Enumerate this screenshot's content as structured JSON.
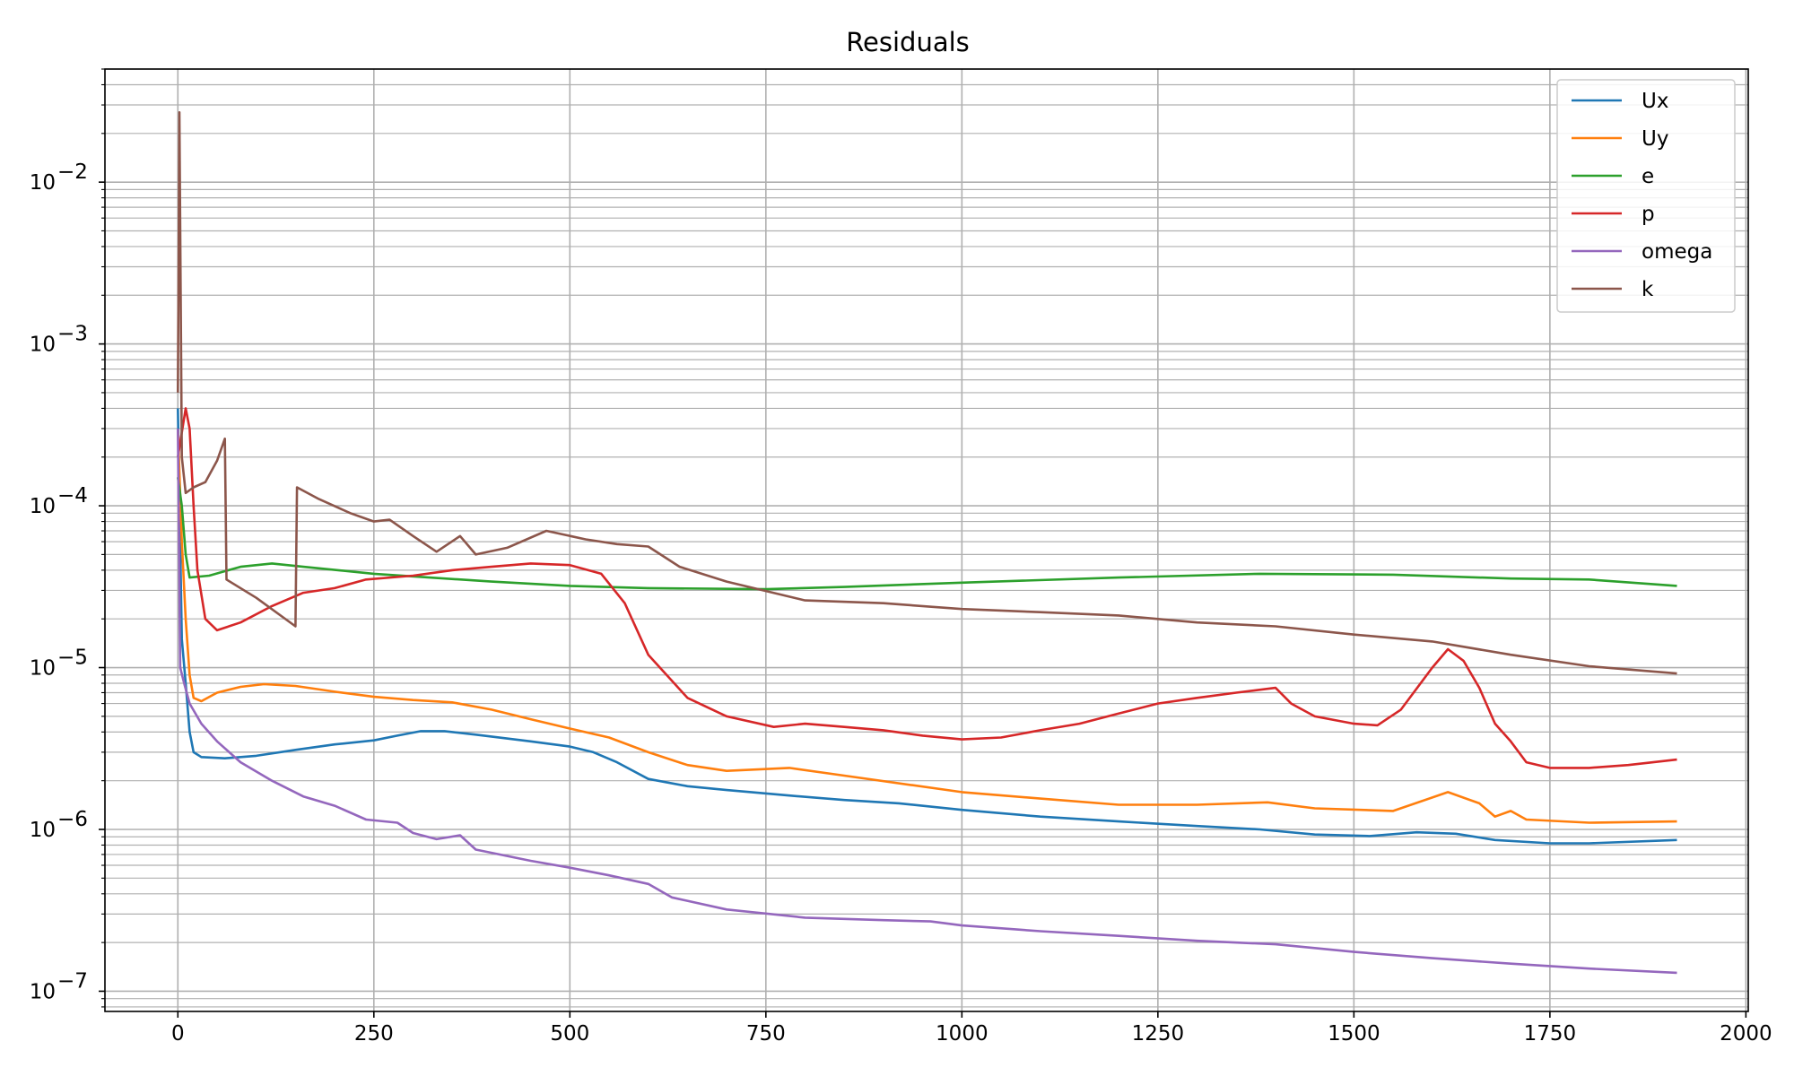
{
  "chart_data": {
    "type": "line",
    "title": "Residuals",
    "xlabel": "",
    "ylabel": "",
    "yscale": "log",
    "xlim": [
      -93,
      2003
    ],
    "ylim": [
      7.5e-08,
      0.05
    ],
    "x_ticks": [
      0,
      250,
      500,
      750,
      1000,
      1250,
      1500,
      1750,
      2000
    ],
    "y_ticks": [
      {
        "value": 1e-07,
        "base": "10",
        "exp": "−7"
      },
      {
        "value": 1e-06,
        "base": "10",
        "exp": "−6"
      },
      {
        "value": 1e-05,
        "base": "10",
        "exp": "−5"
      },
      {
        "value": 0.0001,
        "base": "10",
        "exp": "−4"
      },
      {
        "value": 0.001,
        "base": "10",
        "exp": "−3"
      },
      {
        "value": 0.01,
        "base": "10",
        "exp": "−2"
      }
    ],
    "grid": "both (major and minor on y)",
    "legend_position": "top-right",
    "series": [
      {
        "name": "Ux",
        "color": "#1f77b4",
        "points": [
          [
            0,
            0.0004
          ],
          [
            5,
            1.5e-05
          ],
          [
            10,
            8e-06
          ],
          [
            15,
            4e-06
          ],
          [
            20,
            3e-06
          ],
          [
            30,
            2.8e-06
          ],
          [
            60,
            2.75e-06
          ],
          [
            100,
            2.85e-06
          ],
          [
            150,
            3.1e-06
          ],
          [
            200,
            3.35e-06
          ],
          [
            250,
            3.55e-06
          ],
          [
            280,
            3.8e-06
          ],
          [
            310,
            4.05e-06
          ],
          [
            340,
            4.05e-06
          ],
          [
            380,
            3.85e-06
          ],
          [
            450,
            3.5e-06
          ],
          [
            500,
            3.25e-06
          ],
          [
            530,
            3e-06
          ],
          [
            560,
            2.6e-06
          ],
          [
            600,
            2.05e-06
          ],
          [
            650,
            1.85e-06
          ],
          [
            700,
            1.75e-06
          ],
          [
            780,
            1.62e-06
          ],
          [
            850,
            1.52e-06
          ],
          [
            920,
            1.45e-06
          ],
          [
            1000,
            1.32e-06
          ],
          [
            1100,
            1.2e-06
          ],
          [
            1200,
            1.12e-06
          ],
          [
            1300,
            1.05e-06
          ],
          [
            1380,
            1e-06
          ],
          [
            1450,
            9.3e-07
          ],
          [
            1520,
            9.1e-07
          ],
          [
            1580,
            9.6e-07
          ],
          [
            1630,
            9.4e-07
          ],
          [
            1680,
            8.6e-07
          ],
          [
            1750,
            8.2e-07
          ],
          [
            1800,
            8.2e-07
          ],
          [
            1912,
            8.6e-07
          ]
        ]
      },
      {
        "name": "Uy",
        "color": "#ff7f0e",
        "points": [
          [
            0,
            0.0003
          ],
          [
            5,
            6e-05
          ],
          [
            10,
            2e-05
          ],
          [
            15,
            9e-06
          ],
          [
            20,
            6.5e-06
          ],
          [
            30,
            6.2e-06
          ],
          [
            50,
            7e-06
          ],
          [
            80,
            7.6e-06
          ],
          [
            110,
            7.9e-06
          ],
          [
            150,
            7.7e-06
          ],
          [
            200,
            7.1e-06
          ],
          [
            250,
            6.6e-06
          ],
          [
            300,
            6.3e-06
          ],
          [
            350,
            6.1e-06
          ],
          [
            400,
            5.5e-06
          ],
          [
            450,
            4.8e-06
          ],
          [
            500,
            4.2e-06
          ],
          [
            550,
            3.7e-06
          ],
          [
            600,
            3e-06
          ],
          [
            650,
            2.5e-06
          ],
          [
            700,
            2.3e-06
          ],
          [
            780,
            2.4e-06
          ],
          [
            850,
            2.15e-06
          ],
          [
            1000,
            1.7e-06
          ],
          [
            1100,
            1.55e-06
          ],
          [
            1200,
            1.42e-06
          ],
          [
            1300,
            1.42e-06
          ],
          [
            1390,
            1.47e-06
          ],
          [
            1450,
            1.35e-06
          ],
          [
            1550,
            1.3e-06
          ],
          [
            1620,
            1.7e-06
          ],
          [
            1660,
            1.45e-06
          ],
          [
            1680,
            1.2e-06
          ],
          [
            1700,
            1.3e-06
          ],
          [
            1720,
            1.15e-06
          ],
          [
            1800,
            1.1e-06
          ],
          [
            1912,
            1.12e-06
          ]
        ]
      },
      {
        "name": "e",
        "color": "#2ca02c",
        "points": [
          [
            0,
            0.00015
          ],
          [
            5,
            0.0001
          ],
          [
            10,
            5e-05
          ],
          [
            15,
            3.6e-05
          ],
          [
            40,
            3.7e-05
          ],
          [
            80,
            4.2e-05
          ],
          [
            120,
            4.4e-05
          ],
          [
            160,
            4.2e-05
          ],
          [
            250,
            3.8e-05
          ],
          [
            400,
            3.4e-05
          ],
          [
            500,
            3.2e-05
          ],
          [
            600,
            3.1e-05
          ],
          [
            750,
            3.05e-05
          ],
          [
            850,
            3.15e-05
          ],
          [
            1000,
            3.35e-05
          ],
          [
            1200,
            3.6e-05
          ],
          [
            1380,
            3.8e-05
          ],
          [
            1550,
            3.75e-05
          ],
          [
            1700,
            3.55e-05
          ],
          [
            1800,
            3.5e-05
          ],
          [
            1912,
            3.2e-05
          ]
        ]
      },
      {
        "name": "p",
        "color": "#d62728",
        "points": [
          [
            0,
            0.0002
          ],
          [
            10,
            0.0004
          ],
          [
            15,
            0.0003
          ],
          [
            20,
            0.0001
          ],
          [
            25,
            4e-05
          ],
          [
            35,
            2e-05
          ],
          [
            50,
            1.7e-05
          ],
          [
            80,
            1.9e-05
          ],
          [
            120,
            2.4e-05
          ],
          [
            160,
            2.9e-05
          ],
          [
            200,
            3.1e-05
          ],
          [
            240,
            3.5e-05
          ],
          [
            300,
            3.7e-05
          ],
          [
            350,
            4e-05
          ],
          [
            400,
            4.2e-05
          ],
          [
            450,
            4.4e-05
          ],
          [
            500,
            4.3e-05
          ],
          [
            540,
            3.8e-05
          ],
          [
            570,
            2.5e-05
          ],
          [
            600,
            1.2e-05
          ],
          [
            650,
            6.5e-06
          ],
          [
            700,
            5e-06
          ],
          [
            760,
            4.3e-06
          ],
          [
            800,
            4.5e-06
          ],
          [
            850,
            4.3e-06
          ],
          [
            900,
            4.1e-06
          ],
          [
            950,
            3.8e-06
          ],
          [
            1000,
            3.6e-06
          ],
          [
            1050,
            3.7e-06
          ],
          [
            1100,
            4.1e-06
          ],
          [
            1150,
            4.5e-06
          ],
          [
            1200,
            5.2e-06
          ],
          [
            1250,
            6e-06
          ],
          [
            1300,
            6.5e-06
          ],
          [
            1350,
            7e-06
          ],
          [
            1400,
            7.5e-06
          ],
          [
            1420,
            6e-06
          ],
          [
            1450,
            5e-06
          ],
          [
            1500,
            4.5e-06
          ],
          [
            1530,
            4.4e-06
          ],
          [
            1560,
            5.5e-06
          ],
          [
            1600,
            1e-05
          ],
          [
            1620,
            1.3e-05
          ],
          [
            1640,
            1.1e-05
          ],
          [
            1660,
            7.5e-06
          ],
          [
            1680,
            4.5e-06
          ],
          [
            1700,
            3.5e-06
          ],
          [
            1720,
            2.6e-06
          ],
          [
            1750,
            2.4e-06
          ],
          [
            1800,
            2.4e-06
          ],
          [
            1850,
            2.5e-06
          ],
          [
            1912,
            2.7e-06
          ]
        ]
      },
      {
        "name": "omega",
        "color": "#9467bd",
        "points": [
          [
            0,
            0.0003
          ],
          [
            3,
            1e-05
          ],
          [
            8,
            8e-06
          ],
          [
            15,
            6e-06
          ],
          [
            30,
            4.5e-06
          ],
          [
            50,
            3.5e-06
          ],
          [
            80,
            2.6e-06
          ],
          [
            120,
            2e-06
          ],
          [
            160,
            1.6e-06
          ],
          [
            200,
            1.4e-06
          ],
          [
            240,
            1.15e-06
          ],
          [
            280,
            1.1e-06
          ],
          [
            300,
            9.5e-07
          ],
          [
            330,
            8.7e-07
          ],
          [
            360,
            9.2e-07
          ],
          [
            380,
            7.5e-07
          ],
          [
            450,
            6.4e-07
          ],
          [
            500,
            5.8e-07
          ],
          [
            550,
            5.2e-07
          ],
          [
            600,
            4.6e-07
          ],
          [
            630,
            3.8e-07
          ],
          [
            700,
            3.2e-07
          ],
          [
            800,
            2.85e-07
          ],
          [
            900,
            2.75e-07
          ],
          [
            960,
            2.7e-07
          ],
          [
            1000,
            2.55e-07
          ],
          [
            1100,
            2.35e-07
          ],
          [
            1200,
            2.2e-07
          ],
          [
            1300,
            2.05e-07
          ],
          [
            1400,
            1.95e-07
          ],
          [
            1500,
            1.75e-07
          ],
          [
            1600,
            1.6e-07
          ],
          [
            1700,
            1.48e-07
          ],
          [
            1800,
            1.38e-07
          ],
          [
            1912,
            1.3e-07
          ]
        ]
      },
      {
        "name": "k",
        "color": "#8c564b",
        "points": [
          [
            0,
            0.0005
          ],
          [
            2,
            0.027
          ],
          [
            5,
            0.0002
          ],
          [
            10,
            0.00012
          ],
          [
            20,
            0.00013
          ],
          [
            35,
            0.00014
          ],
          [
            50,
            0.00019
          ],
          [
            60,
            0.00026
          ],
          [
            62,
            3.5e-05
          ],
          [
            100,
            2.7e-05
          ],
          [
            150,
            1.8e-05
          ],
          [
            152,
            0.00013
          ],
          [
            180,
            0.00011
          ],
          [
            220,
            9e-05
          ],
          [
            250,
            8e-05
          ],
          [
            270,
            8.2e-05
          ],
          [
            300,
            6.5e-05
          ],
          [
            330,
            5.2e-05
          ],
          [
            360,
            6.5e-05
          ],
          [
            380,
            5e-05
          ],
          [
            420,
            5.5e-05
          ],
          [
            470,
            7e-05
          ],
          [
            520,
            6.2e-05
          ],
          [
            560,
            5.8e-05
          ],
          [
            600,
            5.6e-05
          ],
          [
            640,
            4.2e-05
          ],
          [
            700,
            3.4e-05
          ],
          [
            800,
            2.6e-05
          ],
          [
            900,
            2.5e-05
          ],
          [
            1000,
            2.3e-05
          ],
          [
            1100,
            2.2e-05
          ],
          [
            1200,
            2.1e-05
          ],
          [
            1300,
            1.9e-05
          ],
          [
            1400,
            1.8e-05
          ],
          [
            1500,
            1.6e-05
          ],
          [
            1600,
            1.45e-05
          ],
          [
            1700,
            1.2e-05
          ],
          [
            1800,
            1.02e-05
          ],
          [
            1912,
            9.2e-06
          ]
        ]
      }
    ]
  }
}
